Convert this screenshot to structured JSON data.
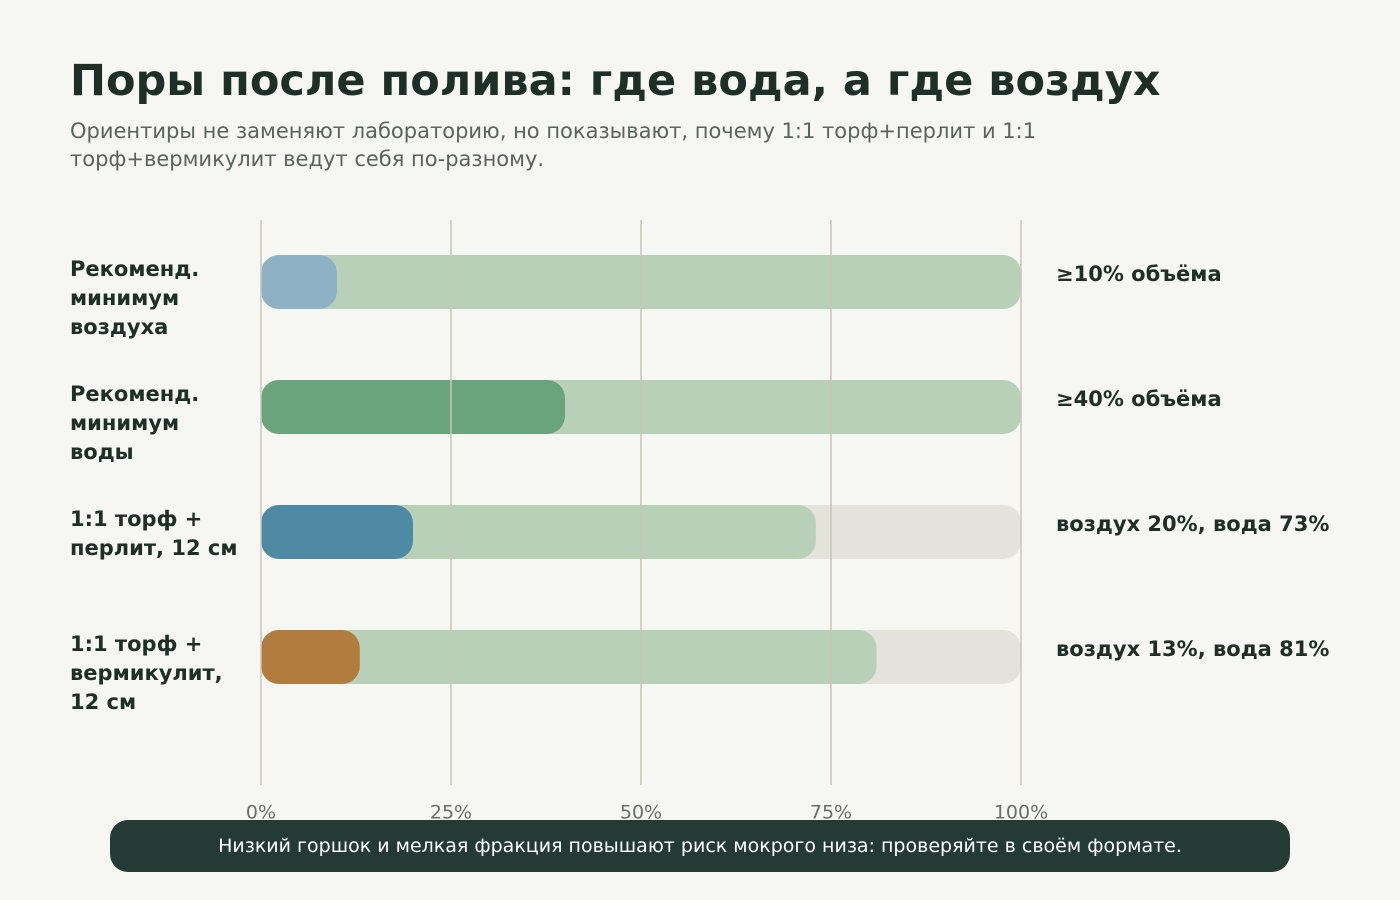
{
  "chart_data": {
    "type": "bar",
    "title": "Поры после полива: где вода, а где воздух",
    "subtitle": "Ориентиры не заменяют лабораторию, но показывают, почему 1:1 торф+перлит и 1:1 торф+вермикулит ведут себя по-разному.",
    "rows": [
      {
        "label": "Рекоменд. минимум воздуха",
        "value": 10,
        "extent": 100,
        "color": "#8fb1c6",
        "note": "≥10% объёма"
      },
      {
        "label": "Рекоменд. минимум воды",
        "value": 40,
        "extent": 100,
        "color": "#6aa47a",
        "note": "≥40% объёма"
      },
      {
        "label": "1:1 торф + перлит, 12 см",
        "value": 20,
        "extent": 73,
        "color": "#4f8aa4",
        "note": "воздух 20%, вода 73%"
      },
      {
        "label": "1:1 торф + вермикулит, 12 см",
        "value": 13,
        "extent": 81,
        "color": "#b27c3f",
        "note": "воздух 13%, вода 81%"
      }
    ],
    "extent_color": "#b8d0b8",
    "xlim": [
      0,
      100
    ],
    "xticks": [
      {
        "value": 0,
        "label": "0%"
      },
      {
        "value": 25,
        "label": "25%"
      },
      {
        "value": 50,
        "label": "50%"
      },
      {
        "value": 75,
        "label": "75%"
      },
      {
        "value": 100,
        "label": "100%"
      }
    ],
    "grid": true,
    "footer": "Низкий горшок и мелкая фракция повышают риск мокрого низа: проверяйте в своём формате."
  }
}
